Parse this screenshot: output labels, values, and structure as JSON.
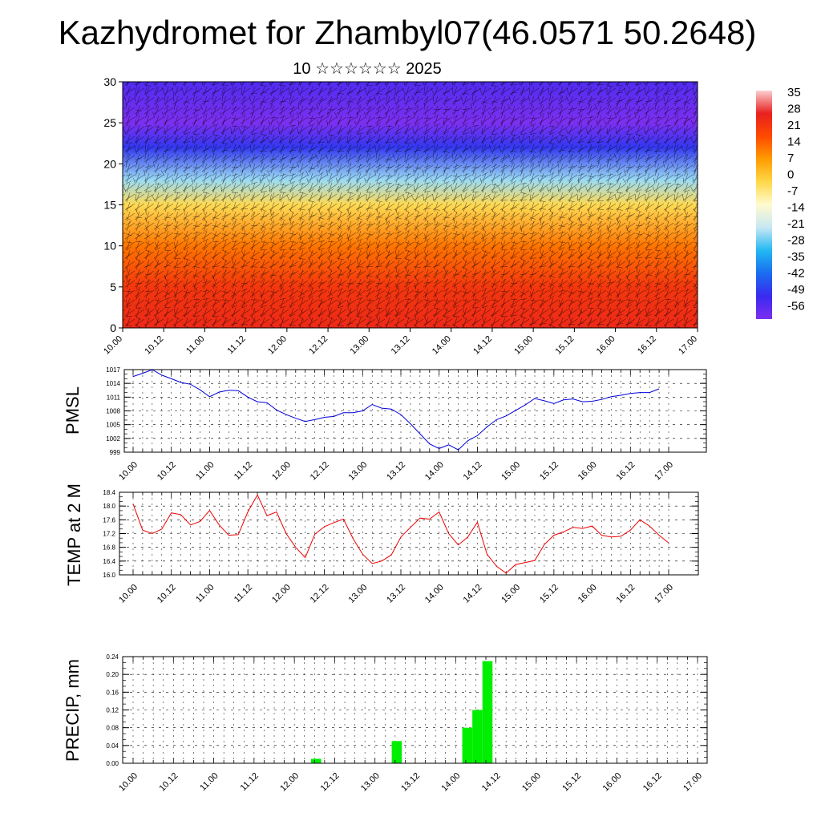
{
  "header": {
    "title": "Kazhydromet for Zhambyl07(46.0571 50.2648)",
    "subtitle": "10 ☆☆☆☆☆☆ 2025"
  },
  "x_tick_labels": [
    "10.00",
    "10.12",
    "11.00",
    "11.12",
    "12.00",
    "12.12",
    "13.00",
    "13.12",
    "14.00",
    "14.12",
    "15.00",
    "15.12",
    "16.00",
    "16.12",
    "17.00"
  ],
  "chart_data": [
    {
      "type": "heatmap",
      "title": "",
      "x_range": [
        0,
        168
      ],
      "y_range": [
        0,
        30
      ],
      "y_ticks": [
        0,
        5,
        10,
        15,
        20,
        25,
        30
      ],
      "colorbar_labels": [
        "35",
        "28",
        "21",
        "14",
        "7",
        "0",
        "-7",
        "-14",
        "-21",
        "-28",
        "-35",
        "-42",
        "-49",
        "-56"
      ],
      "colorbar_colors": [
        "#fbcfcf",
        "#e8201e",
        "#ff4a00",
        "#ff9c00",
        "#ffd84a",
        "#fffbd0",
        "#c7e7f4",
        "#22b8f2",
        "#1a6cf0",
        "#3a2af0",
        "#7d2ff0"
      ],
      "profile": [
        {
          "level": 0,
          "temp": 24
        },
        {
          "level": 5,
          "temp": 21
        },
        {
          "level": 10,
          "temp": 12
        },
        {
          "level": 15,
          "temp": -2
        },
        {
          "level": 18,
          "temp": -22
        },
        {
          "level": 22,
          "temp": -45
        },
        {
          "level": 25,
          "temp": -56
        },
        {
          "level": 30,
          "temp": -50
        }
      ],
      "wind_vectors": "dense black wind barbs overlay"
    },
    {
      "type": "line",
      "ylabel": "PMSL",
      "ylim": [
        999,
        1017
      ],
      "y_ticks": [
        "1017",
        "1014",
        "1011",
        "1008",
        "1005",
        "1002",
        "999"
      ],
      "line_color": "#0000dd",
      "x_step_hours": 3,
      "values": [
        1015.5,
        1016.2,
        1017.0,
        1015.8,
        1015.0,
        1014.2,
        1013.8,
        1012.6,
        1011.1,
        1012.1,
        1012.5,
        1012.4,
        1011.0,
        1010.0,
        1009.8,
        1008.2,
        1007.2,
        1006.4,
        1005.7,
        1006.1,
        1006.6,
        1006.8,
        1007.6,
        1007.6,
        1008.0,
        1009.4,
        1008.6,
        1008.4,
        1007.2,
        1005.2,
        1003.0,
        1000.8,
        999.8,
        1000.6,
        999.5,
        1001.5,
        1002.6,
        1004.5,
        1006.1,
        1006.9,
        1008.1,
        1009.3,
        1010.7,
        1010.2,
        1009.6,
        1010.4,
        1010.6,
        1010.0,
        1010.1,
        1010.5,
        1011.1,
        1011.4,
        1011.8,
        1012.0,
        1012.0,
        1012.8
      ]
    },
    {
      "type": "line",
      "ylabel": "TEMP at 2 M",
      "ylim": [
        16.0,
        18.4
      ],
      "y_ticks": [
        "18.4",
        "18.0",
        "17.6",
        "17.2",
        "16.8",
        "16.4",
        "16.0"
      ],
      "line_color": "#ee0000",
      "x_step_hours": 3,
      "values": [
        18.06,
        17.3,
        17.2,
        17.33,
        17.8,
        17.75,
        17.45,
        17.55,
        17.87,
        17.45,
        17.15,
        17.17,
        17.83,
        18.32,
        17.72,
        17.83,
        17.2,
        16.8,
        16.5,
        17.18,
        17.4,
        17.52,
        17.62,
        17.05,
        16.6,
        16.33,
        16.4,
        16.58,
        17.1,
        17.38,
        17.65,
        17.62,
        17.83,
        17.2,
        16.87,
        17.1,
        17.53,
        16.6,
        16.25,
        16.05,
        16.3,
        16.36,
        16.42,
        16.88,
        17.15,
        17.25,
        17.38,
        17.35,
        17.42,
        17.15,
        17.1,
        17.12,
        17.3,
        17.6,
        17.42,
        17.15,
        16.93
      ]
    },
    {
      "type": "bar",
      "ylabel": "PRECIP, mm",
      "ylim": [
        0.0,
        0.24
      ],
      "y_ticks": [
        "0.24",
        "0.20",
        "0.16",
        "0.12",
        "0.08",
        "0.04",
        "0.00"
      ],
      "bar_color": "#00ee00",
      "bars": [
        {
          "hour": 54,
          "value": 0.01
        },
        {
          "hour": 78,
          "value": 0.05
        },
        {
          "hour": 99,
          "value": 0.08
        },
        {
          "hour": 102,
          "value": 0.12
        },
        {
          "hour": 105,
          "value": 0.23
        }
      ]
    }
  ]
}
